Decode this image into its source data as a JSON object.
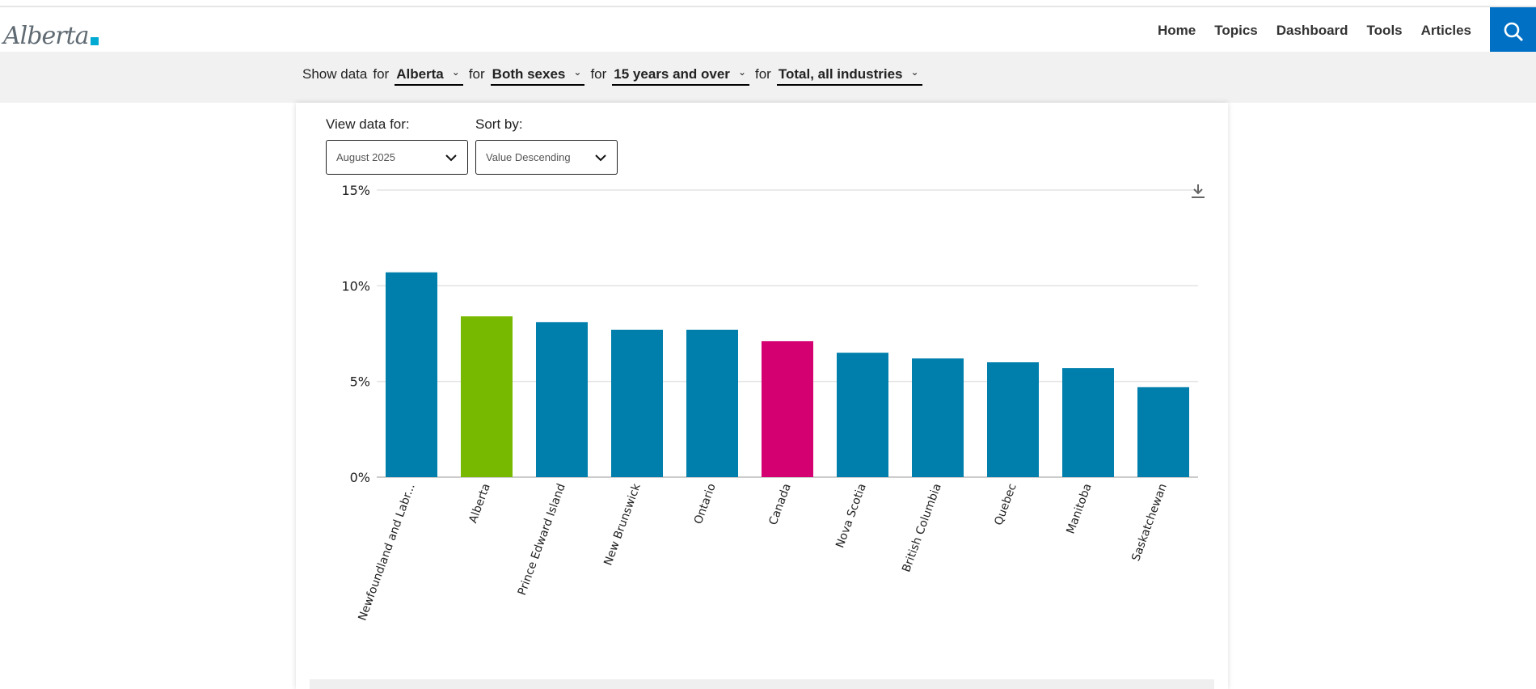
{
  "header": {
    "logo_text": "Alberta",
    "nav": [
      "Home",
      "Topics",
      "Dashboard",
      "Tools",
      "Articles"
    ],
    "search_icon": "search-icon"
  },
  "filters": {
    "prefix": "Show data",
    "connector": "for",
    "selects": [
      "Alberta",
      "Both sexes",
      "15 years and over",
      "Total, all industries"
    ]
  },
  "controls": {
    "view_label": "View data for:",
    "view_value": "August 2025",
    "sort_label": "Sort by:",
    "sort_value": "Value Descending"
  },
  "colors": {
    "default": "#007fac",
    "highlight": "#77b900",
    "canada": "#d40072",
    "brand": "#0070c4"
  },
  "chart_data": {
    "type": "bar",
    "categories": [
      "Newfoundland and Labr...",
      "Alberta",
      "Prince Edward Island",
      "New Brunswick",
      "Ontario",
      "Canada",
      "Nova Scotia",
      "British Columbia",
      "Quebec",
      "Manitoba",
      "Saskatchewan"
    ],
    "values": [
      10.7,
      8.4,
      8.1,
      7.7,
      7.7,
      7.1,
      6.5,
      6.2,
      6.0,
      5.7,
      4.7
    ],
    "bar_colors": [
      "#007fac",
      "#77b900",
      "#007fac",
      "#007fac",
      "#007fac",
      "#d40072",
      "#007fac",
      "#007fac",
      "#007fac",
      "#007fac",
      "#007fac"
    ],
    "yticks": [
      "0%",
      "5%",
      "10%",
      "15%"
    ],
    "ytick_values": [
      0,
      5,
      10,
      15
    ],
    "ylim": [
      0,
      15
    ],
    "grid": true,
    "title": "",
    "xlabel": "",
    "ylabel": ""
  }
}
